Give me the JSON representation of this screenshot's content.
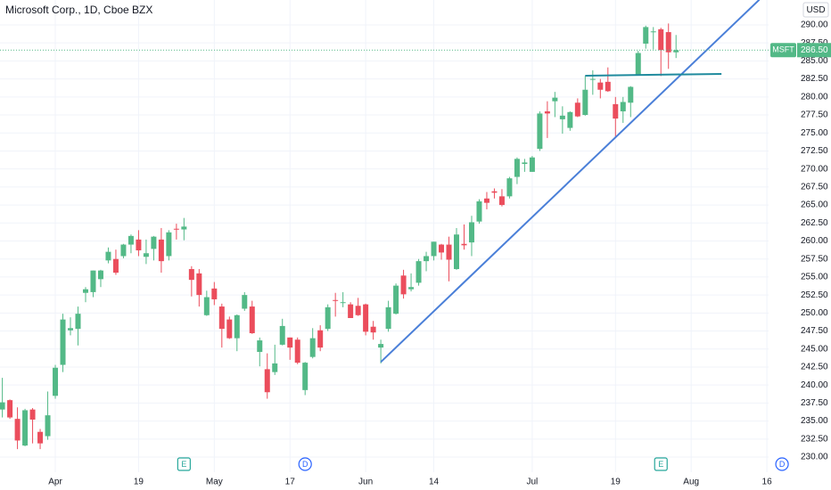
{
  "chart_data": {
    "type": "candlestick",
    "title": "Microsoft Corp., 1D, Cboe BZX",
    "currency": "USD",
    "categories": [
      null,
      null,
      null,
      null,
      null,
      null,
      null,
      "Apr",
      null,
      null,
      null,
      null,
      null,
      null,
      null,
      null,
      null,
      null,
      "19",
      null,
      null,
      null,
      null,
      null,
      null,
      null,
      null,
      null,
      "May",
      null,
      null,
      null,
      null,
      null,
      null,
      null,
      null,
      null,
      "17",
      null,
      null,
      null,
      null,
      null,
      null,
      null,
      null,
      null,
      "Jun",
      null,
      null,
      null,
      null,
      null,
      null,
      null,
      null,
      "14",
      null,
      null,
      null,
      null,
      null,
      null,
      null,
      null,
      null,
      null,
      null,
      null,
      "Jul",
      null,
      null,
      null,
      null,
      null,
      null,
      null,
      null,
      null,
      null,
      "19",
      null,
      null,
      null,
      null,
      null,
      null,
      null,
      null,
      null,
      "Aug",
      null,
      null,
      null,
      null,
      null,
      null,
      null,
      null,
      null,
      "16",
      null,
      null
    ],
    "open": [
      236.6,
      237.9,
      235.3,
      231.6,
      236.6,
      233.5,
      232.9,
      238.5,
      242.8,
      247.6,
      247.8,
      252.8,
      252.9,
      254.7,
      257.3,
      257.5,
      257.9,
      259.5,
      260.2,
      257.8,
      258.9,
      260.2,
      257.9,
      261.7,
      261.6,
      256.1,
      255.5,
      249.7,
      253.4,
      250.9,
      249.1,
      246.5,
      250.6,
      250.9,
      244.6,
      242.2,
      241.8,
      245.6,
      246.6,
      246.3,
      239.3,
      243.9,
      247.6,
      247.8,
      251.8,
      251.4,
      251.2,
      251.0,
      251.2,
      248.1,
      245.2,
      247.8,
      249.9,
      255.2,
      253.3,
      254.2,
      257.2,
      257.9,
      259.5,
      259.5,
      256.1,
      259.6,
      259.8,
      262.7,
      265.9,
      266.9,
      266.2,
      266.2,
      268.9,
      270.7,
      269.6,
      272.8,
      278.0,
      279.4,
      276.9,
      275.7,
      279.2,
      277.5,
      282.4,
      282.0,
      282.1,
      279.0,
      278.0,
      279.2,
      283.0,
      287.4,
      289.0,
      289.4,
      289.0,
      286.2,
      null,
      null,
      null,
      null,
      null,
      null,
      null,
      null,
      null,
      null,
      null,
      null,
      null,
      null
    ],
    "high": [
      241,
      238,
      236.9,
      236.7,
      236.8,
      233.9,
      239.1,
      242.8,
      249.9,
      249.4,
      250.9,
      253.6,
      255.9,
      256,
      259.1,
      258.8,
      259.6,
      260.9,
      261.5,
      260.2,
      260.7,
      261.8,
      261.5,
      262.4,
      263.2,
      256.5,
      256.1,
      253.1,
      254.3,
      251.3,
      249.5,
      249.8,
      252.9,
      251.7,
      246.6,
      244.4,
      245.6,
      249.2,
      246.6,
      246.6,
      243.2,
      247.9,
      248.3,
      251.2,
      252.8,
      252.9,
      251.5,
      252.1,
      251.3,
      248.9,
      246.3,
      251.7,
      254.1,
      256,
      255.5,
      257.5,
      258.5,
      259.9,
      259.6,
      260.6,
      261.8,
      262.3,
      263.5,
      265.8,
      266.8,
      267.3,
      267.2,
      268.9,
      271.6,
      271.4,
      271.8,
      278,
      279.4,
      280.7,
      278.7,
      278,
      279.8,
      282.9,
      283.7,
      282.5,
      284.1,
      280,
      280,
      281.5,
      286.4,
      289.9,
      289.7,
      289.6,
      290.2,
      288.6,
      null,
      null,
      null,
      null,
      null,
      null,
      null,
      null,
      null,
      null,
      null,
      null,
      null,
      null
    ],
    "low": [
      235.5,
      235.3,
      231.1,
      231.5,
      231.9,
      231.1,
      232.4,
      238.1,
      241.8,
      246.9,
      245.5,
      251.5,
      252.2,
      253.6,
      256.9,
      255.3,
      257.6,
      258.3,
      257.9,
      256.8,
      257.3,
      255.6,
      257.3,
      260.2,
      260.1,
      252.3,
      250.9,
      249.6,
      251.1,
      245.2,
      246.4,
      244.7,
      250.3,
      247.1,
      242.6,
      238.1,
      241.4,
      245.5,
      243.5,
      242.9,
      238.6,
      243.7,
      244.7,
      247.5,
      249.5,
      250.8,
      249.3,
      249.6,
      246.9,
      246.3,
      243,
      247.4,
      249.8,
      252,
      253,
      253.8,
      255.8,
      257.3,
      257.4,
      254.4,
      256,
      258.8,
      257.9,
      262.4,
      264.4,
      265.9,
      264.8,
      265.9,
      267.9,
      269.6,
      269.6,
      272.5,
      274.3,
      277.2,
      274.9,
      275.3,
      277.2,
      277.4,
      280.3,
      279.8,
      280.7,
      274.5,
      276.4,
      277.2,
      283,
      286.7,
      286.6,
      282.9,
      283.9,
      285.4,
      null,
      null,
      null,
      null,
      null,
      null,
      null,
      null,
      null,
      null,
      null,
      null,
      null,
      null
    ],
    "close": [
      237.6,
      235.5,
      232.3,
      236.5,
      235.2,
      231.9,
      235.8,
      242.4,
      249.1,
      247.9,
      249.9,
      253.3,
      255.9,
      255.9,
      258.5,
      255.6,
      259.5,
      260.7,
      258.7,
      258.3,
      260.6,
      257.2,
      261.2,
      261.6,
      262,
      254.6,
      252.5,
      252.2,
      251.9,
      247.8,
      246.5,
      249.7,
      252.5,
      247.2,
      246.2,
      239,
      243,
      248.2,
      245.2,
      243.1,
      243.1,
      246.5,
      245.2,
      250.8,
      251.7,
      251.5,
      249.3,
      249.7,
      247.4,
      247.3,
      245.7,
      250.8,
      253.8,
      252.6,
      253.6,
      257.2,
      257.9,
      259.9,
      258.4,
      257.4,
      260.9,
      259.4,
      262.6,
      265.5,
      265.3,
      266.7,
      265,
      268.7,
      271.4,
      270.9,
      271.6,
      277.7,
      277.7,
      279.9,
      277.4,
      277.9,
      277.3,
      281,
      282.5,
      281,
      280.8,
      277,
      279.3,
      281.4,
      286.1,
      289.7,
      289.1,
      286.5,
      286.2,
      286.5,
      null,
      null,
      null,
      null,
      null,
      null,
      null,
      null,
      null,
      null,
      null,
      null,
      null,
      null
    ],
    "up_color": "#53b987",
    "down_color": "#eb4d5c",
    "ylim": [
      227.9,
      293.46
    ],
    "yticks": [
      {
        "value": 230,
        "label": "230.00"
      },
      {
        "value": 232.5,
        "label": "232.50"
      },
      {
        "value": 235,
        "label": "235.00"
      },
      {
        "value": 237.5,
        "label": "237.50"
      },
      {
        "value": 240,
        "label": "240.00"
      },
      {
        "value": 242.5,
        "label": "242.50"
      },
      {
        "value": 245,
        "label": "245.00"
      },
      {
        "value": 247.5,
        "label": "247.50"
      },
      {
        "value": 250,
        "label": "250.00"
      },
      {
        "value": 252.5,
        "label": "252.50"
      },
      {
        "value": 255,
        "label": "255.00"
      },
      {
        "value": 257.5,
        "label": "257.50"
      },
      {
        "value": 260,
        "label": "260.00"
      },
      {
        "value": 262.5,
        "label": "262.50"
      },
      {
        "value": 265,
        "label": "265.00"
      },
      {
        "value": 267.5,
        "label": "267.50"
      },
      {
        "value": 270,
        "label": "270.00"
      },
      {
        "value": 272.5,
        "label": "272.50"
      },
      {
        "value": 275,
        "label": "275.00"
      },
      {
        "value": 277.5,
        "label": "277.50"
      },
      {
        "value": 280,
        "label": "280.00"
      },
      {
        "value": 282.5,
        "label": "282.50"
      },
      {
        "value": 285,
        "label": "285.00"
      },
      {
        "value": 287.5,
        "label": "287.50"
      },
      {
        "value": 290,
        "label": "290.00"
      }
    ],
    "grid": true,
    "last_price": {
      "symbol": "MSFT",
      "value": 286.5,
      "value_label": "286.50",
      "color": "#53b987"
    },
    "events": [
      {
        "category_index": 24,
        "label": "E",
        "color": "#26a69a"
      },
      {
        "category_index": 40,
        "label": "D",
        "color": "#2962ff"
      },
      {
        "category_index": 87,
        "label": "E",
        "color": "#26a69a"
      },
      {
        "category_index": 103,
        "label": "D",
        "color": "#2962ff"
      }
    ],
    "drawings": [
      {
        "color": "#4a7fd8",
        "x": [
          50,
          100
        ],
        "y": [
          243.2,
          293.5
        ]
      },
      {
        "color": "#1f8a9e",
        "x": [
          77,
          95
        ],
        "y": [
          282.95,
          283.2
        ]
      }
    ]
  }
}
